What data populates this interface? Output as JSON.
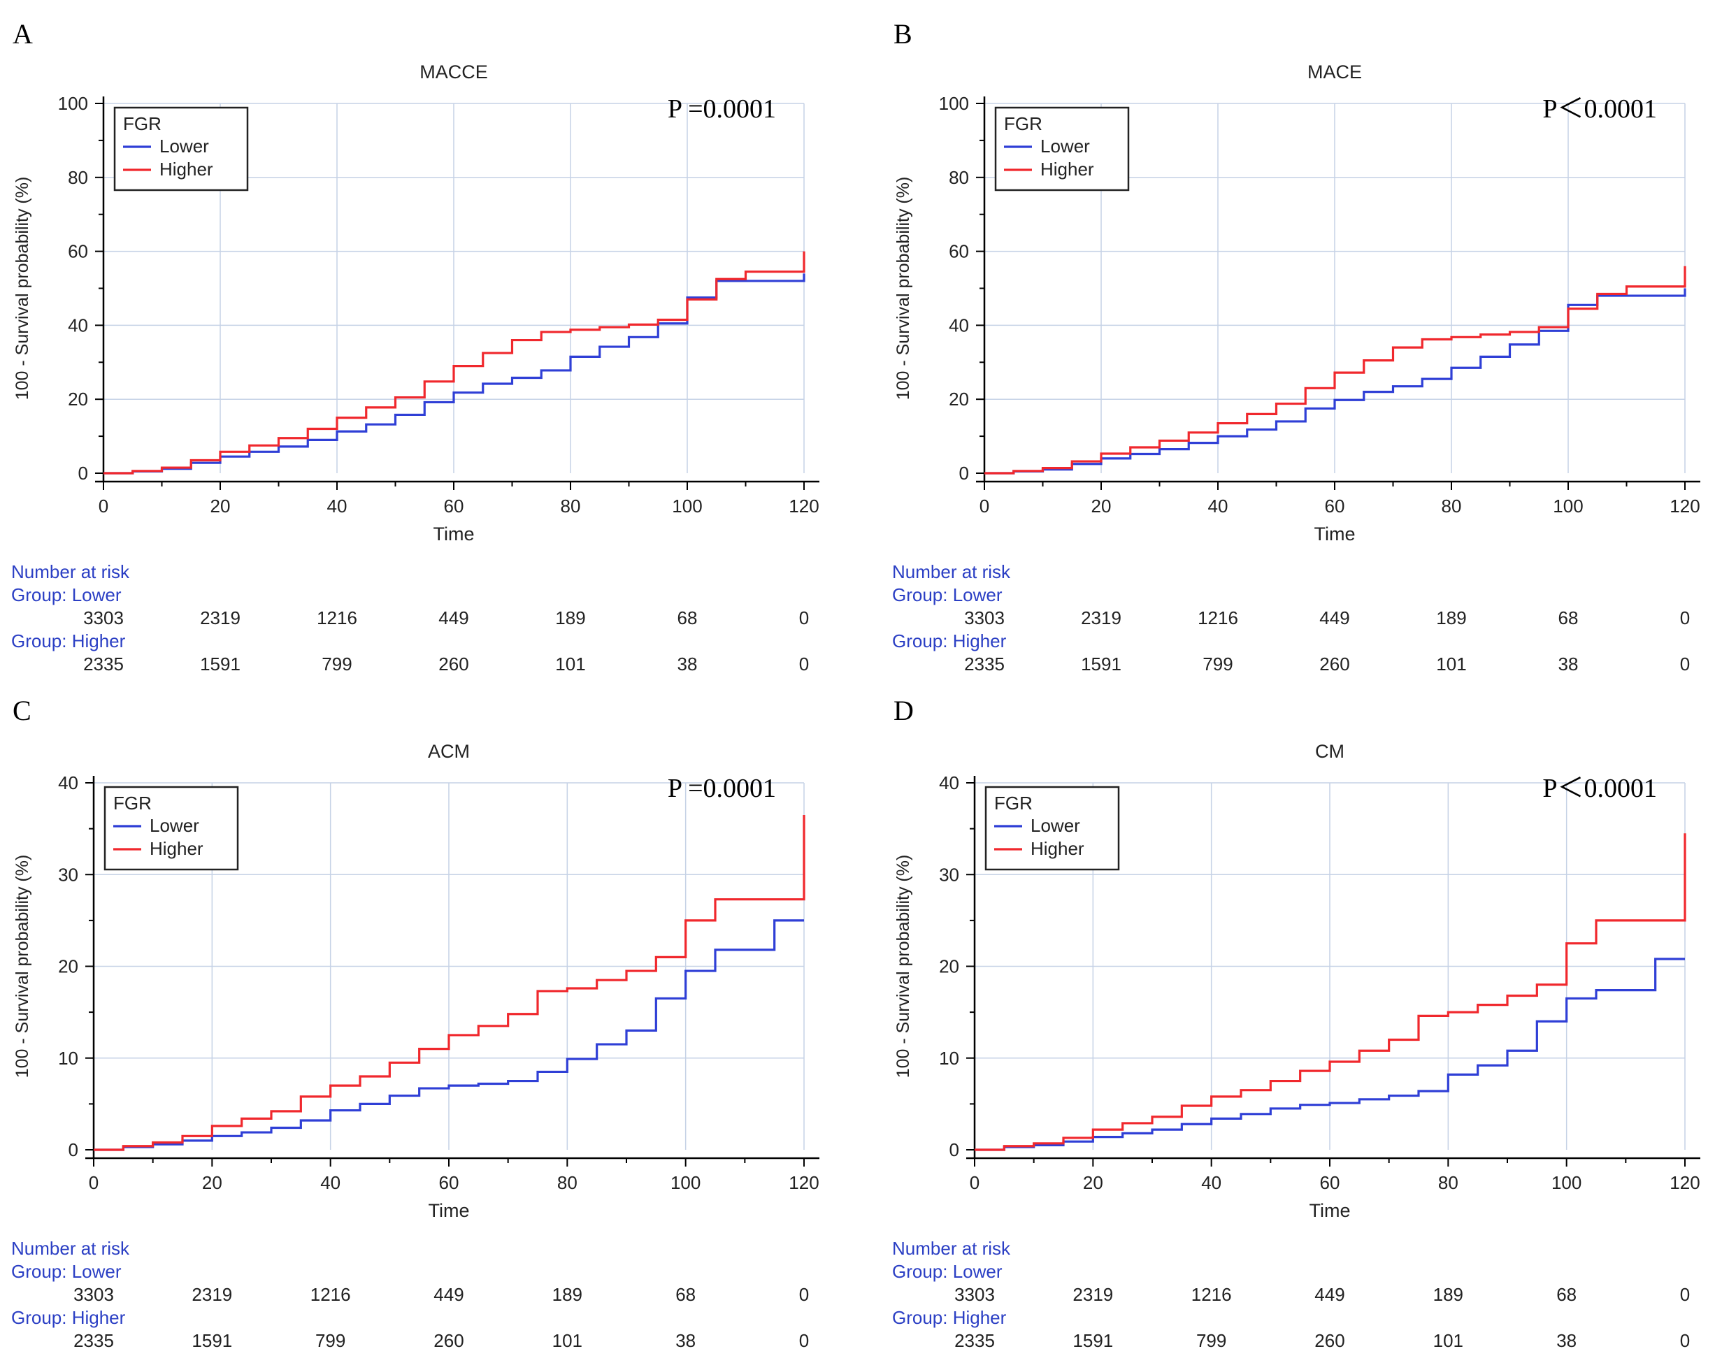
{
  "colors": {
    "lower": "#2f3fd6",
    "higher": "#f0282d",
    "grid": "#c6d2e6",
    "risk_label": "#2b3fc4",
    "axis": "#000000"
  },
  "chart_data": [
    {
      "type": "line",
      "panel_letter": "A",
      "title": "MACCE",
      "p_value": "P =0.0001",
      "xlabel": "Time",
      "ylabel": "100 - Survival probability (%)",
      "xlim": [
        0,
        120
      ],
      "ylim": [
        0,
        100
      ],
      "xticks": [
        "0",
        "20",
        "40",
        "60",
        "80",
        "100",
        "120"
      ],
      "yticks": [
        "0",
        "20",
        "40",
        "60",
        "80",
        "100"
      ],
      "grid": true,
      "legend": {
        "title": "FGR",
        "position": "top-left"
      },
      "series": [
        {
          "name": "Lower",
          "x": [
            0,
            5,
            10,
            15,
            20,
            25,
            30,
            35,
            40,
            45,
            50,
            55,
            60,
            65,
            70,
            75,
            80,
            85,
            90,
            95,
            100,
            105,
            110,
            115,
            120
          ],
          "y": [
            0,
            0.5,
            1.2,
            2.8,
            4.5,
            5.8,
            7.2,
            9.0,
            11.3,
            13.2,
            15.8,
            19.2,
            21.8,
            24.2,
            25.8,
            27.8,
            31.5,
            34.2,
            36.8,
            40.5,
            47.5,
            52.0,
            52.0,
            52.0,
            54.0
          ]
        },
        {
          "name": "Higher",
          "x": [
            0,
            5,
            10,
            15,
            20,
            25,
            30,
            35,
            40,
            45,
            50,
            55,
            60,
            65,
            70,
            75,
            80,
            85,
            90,
            95,
            100,
            105,
            110,
            115,
            120
          ],
          "y": [
            0,
            0.6,
            1.5,
            3.5,
            5.8,
            7.5,
            9.5,
            12.0,
            15.0,
            17.8,
            20.5,
            24.8,
            29.0,
            32.5,
            36.0,
            38.2,
            38.8,
            39.5,
            40.2,
            41.5,
            47.0,
            52.5,
            54.5,
            54.5,
            60.0
          ]
        }
      ],
      "risk_table": {
        "header": "Number at risk",
        "groups": [
          {
            "label": "Group: Lower",
            "counts": [
              "3303",
              "2319",
              "1216",
              "449",
              "189",
              "68",
              "0"
            ]
          },
          {
            "label": "Group: Higher",
            "counts": [
              "2335",
              "1591",
              "799",
              "260",
              "101",
              "38",
              "0"
            ]
          }
        ]
      }
    },
    {
      "type": "line",
      "panel_letter": "B",
      "title": "MACE",
      "p_value": "P＜0.0001",
      "xlabel": "Time",
      "ylabel": "100 - Survival probability (%)",
      "xlim": [
        0,
        120
      ],
      "ylim": [
        0,
        100
      ],
      "xticks": [
        "0",
        "20",
        "40",
        "60",
        "80",
        "100",
        "120"
      ],
      "yticks": [
        "0",
        "20",
        "40",
        "60",
        "80",
        "100"
      ],
      "grid": true,
      "legend": {
        "title": "FGR",
        "position": "top-left"
      },
      "series": [
        {
          "name": "Lower",
          "x": [
            0,
            5,
            10,
            15,
            20,
            25,
            30,
            35,
            40,
            45,
            50,
            55,
            60,
            65,
            70,
            75,
            80,
            85,
            90,
            95,
            100,
            105,
            110,
            115,
            120
          ],
          "y": [
            0,
            0.5,
            1.0,
            2.5,
            4.0,
            5.2,
            6.5,
            8.2,
            10.0,
            11.8,
            14.0,
            17.5,
            19.8,
            22.0,
            23.5,
            25.5,
            28.5,
            31.5,
            34.8,
            38.5,
            45.5,
            48.0,
            48.0,
            48.0,
            50.0
          ]
        },
        {
          "name": "Higher",
          "x": [
            0,
            5,
            10,
            15,
            20,
            25,
            30,
            35,
            40,
            45,
            50,
            55,
            60,
            65,
            70,
            75,
            80,
            85,
            90,
            95,
            100,
            105,
            110,
            115,
            120
          ],
          "y": [
            0,
            0.6,
            1.4,
            3.2,
            5.3,
            7.0,
            8.8,
            11.0,
            13.5,
            16.0,
            18.8,
            23.0,
            27.2,
            30.5,
            34.0,
            36.2,
            36.8,
            37.5,
            38.2,
            39.5,
            44.5,
            48.5,
            50.5,
            50.5,
            56.0
          ]
        }
      ],
      "risk_table": {
        "header": "Number at risk",
        "groups": [
          {
            "label": "Group: Lower",
            "counts": [
              "3303",
              "2319",
              "1216",
              "449",
              "189",
              "68",
              "0"
            ]
          },
          {
            "label": "Group: Higher",
            "counts": [
              "2335",
              "1591",
              "799",
              "260",
              "101",
              "38",
              "0"
            ]
          }
        ]
      }
    },
    {
      "type": "line",
      "panel_letter": "C",
      "title": "ACM",
      "p_value": "P =0.0001",
      "xlabel": "Time",
      "ylabel": "100 - Survival probability (%)",
      "xlim": [
        0,
        120
      ],
      "ylim": [
        0,
        40
      ],
      "xticks": [
        "0",
        "20",
        "40",
        "60",
        "80",
        "100",
        "120"
      ],
      "yticks": [
        "0",
        "10",
        "20",
        "30",
        "40"
      ],
      "grid": true,
      "legend": {
        "title": "FGR",
        "position": "top-left"
      },
      "series": [
        {
          "name": "Lower",
          "x": [
            0,
            5,
            10,
            15,
            20,
            25,
            30,
            35,
            40,
            45,
            50,
            55,
            60,
            65,
            70,
            75,
            80,
            85,
            90,
            95,
            100,
            105,
            110,
            115,
            120
          ],
          "y": [
            0,
            0.3,
            0.6,
            1.0,
            1.5,
            1.9,
            2.4,
            3.2,
            4.3,
            5.0,
            5.9,
            6.7,
            7.0,
            7.2,
            7.5,
            8.5,
            9.9,
            11.5,
            13.0,
            16.5,
            19.5,
            21.8,
            21.8,
            25.0,
            25.0
          ]
        },
        {
          "name": "Higher",
          "x": [
            0,
            5,
            10,
            15,
            20,
            25,
            30,
            35,
            40,
            45,
            50,
            55,
            60,
            65,
            70,
            75,
            80,
            85,
            90,
            95,
            100,
            105,
            110,
            115,
            120
          ],
          "y": [
            0,
            0.4,
            0.8,
            1.5,
            2.6,
            3.4,
            4.2,
            5.8,
            7.0,
            8.0,
            9.5,
            11.0,
            12.5,
            13.5,
            14.8,
            17.3,
            17.6,
            18.5,
            19.5,
            21.0,
            25.0,
            27.3,
            27.3,
            27.3,
            36.5
          ]
        }
      ],
      "risk_table": {
        "header": "Number at risk",
        "groups": [
          {
            "label": "Group: Lower",
            "counts": [
              "3303",
              "2319",
              "1216",
              "449",
              "189",
              "68",
              "0"
            ]
          },
          {
            "label": "Group: Higher",
            "counts": [
              "2335",
              "1591",
              "799",
              "260",
              "101",
              "38",
              "0"
            ]
          }
        ]
      }
    },
    {
      "type": "line",
      "panel_letter": "D",
      "title": "CM",
      "p_value": "P＜0.0001",
      "xlabel": "Time",
      "ylabel": "100 - Survival probability (%)",
      "xlim": [
        0,
        120
      ],
      "ylim": [
        0,
        40
      ],
      "xticks": [
        "0",
        "20",
        "40",
        "60",
        "80",
        "100",
        "120"
      ],
      "yticks": [
        "0",
        "10",
        "20",
        "30",
        "40"
      ],
      "grid": true,
      "legend": {
        "title": "FGR",
        "position": "top-left"
      },
      "series": [
        {
          "name": "Lower",
          "x": [
            0,
            5,
            10,
            15,
            20,
            25,
            30,
            35,
            40,
            45,
            50,
            55,
            60,
            65,
            70,
            75,
            80,
            85,
            90,
            95,
            100,
            105,
            110,
            115,
            120
          ],
          "y": [
            0,
            0.3,
            0.5,
            0.9,
            1.4,
            1.8,
            2.2,
            2.8,
            3.4,
            3.9,
            4.5,
            4.9,
            5.1,
            5.5,
            5.9,
            6.4,
            8.2,
            9.2,
            10.8,
            14.0,
            16.5,
            17.4,
            17.4,
            20.8,
            20.8
          ]
        },
        {
          "name": "Higher",
          "x": [
            0,
            5,
            10,
            15,
            20,
            25,
            30,
            35,
            40,
            45,
            50,
            55,
            60,
            65,
            70,
            75,
            80,
            85,
            90,
            95,
            100,
            105,
            110,
            115,
            120
          ],
          "y": [
            0,
            0.4,
            0.7,
            1.3,
            2.2,
            2.9,
            3.6,
            4.8,
            5.8,
            6.5,
            7.5,
            8.6,
            9.6,
            10.8,
            12.0,
            14.6,
            15.0,
            15.8,
            16.8,
            18.0,
            22.5,
            25.0,
            25.0,
            25.0,
            34.5
          ]
        }
      ],
      "risk_table": {
        "header": "Number at risk",
        "groups": [
          {
            "label": "Group: Lower",
            "counts": [
              "3303",
              "2319",
              "1216",
              "449",
              "189",
              "68",
              "0"
            ]
          },
          {
            "label": "Group: Higher",
            "counts": [
              "2335",
              "1591",
              "799",
              "260",
              "101",
              "38",
              "0"
            ]
          }
        ]
      }
    }
  ]
}
